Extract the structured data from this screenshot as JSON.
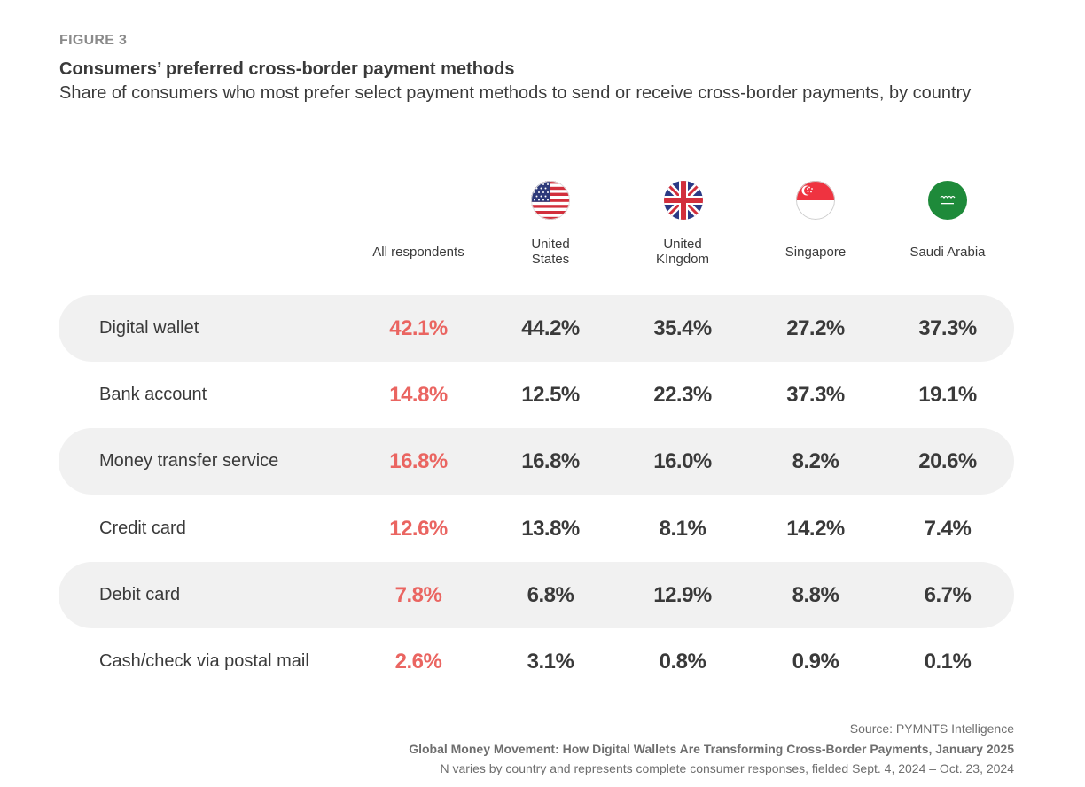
{
  "figure_label": "FIGURE 3",
  "title": "Consumers’ preferred cross-border payment methods",
  "subtitle": "Share of consumers who most prefer select payment methods to send or receive cross-border payments, by country",
  "colors": {
    "accent": "#ea6561",
    "text": "#3a3a3a",
    "row_shade": "#f1f1f1",
    "rule": "#3d4a6b"
  },
  "chart_data": {
    "type": "table",
    "title": "Consumers’ preferred cross-border payment methods",
    "columns": [
      {
        "label": "All respondents",
        "label_line2": "",
        "icon": ""
      },
      {
        "label": "United",
        "label_line2": "States",
        "icon": "us-flag-icon"
      },
      {
        "label": "United",
        "label_line2": "KIngdom",
        "icon": "uk-flag-icon"
      },
      {
        "label": "Singapore",
        "label_line2": "",
        "icon": "singapore-flag-icon"
      },
      {
        "label": "Saudi Arabia",
        "label_line2": "",
        "icon": "saudi-arabia-flag-icon"
      }
    ],
    "rows": [
      {
        "label": "Digital wallet",
        "values": [
          "42.1%",
          "44.2%",
          "35.4%",
          "27.2%",
          "37.3%"
        ]
      },
      {
        "label": "Bank account",
        "values": [
          "14.8%",
          "12.5%",
          "22.3%",
          "37.3%",
          "19.1%"
        ]
      },
      {
        "label": "Money transfer service",
        "values": [
          "16.8%",
          "16.8%",
          "16.0%",
          "8.2%",
          "20.6%"
        ]
      },
      {
        "label": "Credit card",
        "values": [
          "12.6%",
          "13.8%",
          "8.1%",
          "14.2%",
          "7.4%"
        ]
      },
      {
        "label": "Debit card",
        "values": [
          "7.8%",
          "6.8%",
          "12.9%",
          "8.8%",
          "6.7%"
        ]
      },
      {
        "label": "Cash/check via postal mail",
        "values": [
          "2.6%",
          "3.1%",
          "0.8%",
          "0.9%",
          "0.1%"
        ]
      }
    ]
  },
  "footer": {
    "source": "Source: PYMNTS Intelligence",
    "report": "Global Money Movement: How Digital Wallets Are Transforming Cross-Border Payments, January 2025",
    "note": "N varies by country and represents complete consumer responses, fielded Sept. 4, 2024 – Oct. 23, 2024"
  }
}
